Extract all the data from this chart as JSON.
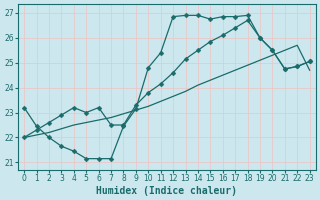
{
  "bg_color": "#cce8ee",
  "grid_color": "#e8c8c8",
  "line_color": "#1a6b6b",
  "xlabel": "Humidex (Indice chaleur)",
  "xlim": [
    -0.5,
    23.5
  ],
  "ylim": [
    20.7,
    27.35
  ],
  "yticks": [
    21,
    22,
    23,
    24,
    25,
    26,
    27
  ],
  "xticks": [
    0,
    1,
    2,
    3,
    4,
    5,
    6,
    7,
    8,
    9,
    10,
    11,
    12,
    13,
    14,
    15,
    16,
    17,
    18,
    19,
    20,
    21,
    22,
    23
  ],
  "line1_x": [
    0,
    1,
    2,
    3,
    4,
    5,
    6,
    7,
    8,
    9,
    10,
    11,
    12,
    13,
    14,
    15,
    16,
    17,
    18,
    19,
    20,
    21,
    22,
    23
  ],
  "line1_y": [
    23.2,
    22.45,
    22.0,
    21.65,
    21.45,
    21.15,
    21.15,
    21.15,
    22.45,
    23.15,
    24.8,
    25.4,
    26.85,
    26.9,
    26.9,
    26.75,
    26.85,
    26.85,
    26.9,
    26.0,
    25.5,
    24.75,
    24.85,
    25.05
  ],
  "line2_x": [
    0,
    1,
    2,
    3,
    4,
    5,
    6,
    7,
    8,
    9,
    10,
    11,
    12,
    13,
    14,
    15,
    16,
    17,
    18,
    19,
    20,
    21,
    22,
    23
  ],
  "line2_y": [
    22.0,
    22.3,
    22.6,
    22.9,
    23.2,
    23.0,
    23.2,
    22.5,
    22.5,
    23.3,
    23.8,
    24.15,
    24.6,
    25.15,
    25.5,
    25.85,
    26.1,
    26.4,
    26.7,
    26.0,
    25.5,
    24.75,
    24.85,
    25.05
  ],
  "line3_x": [
    0,
    1,
    2,
    3,
    4,
    5,
    6,
    7,
    8,
    9,
    10,
    11,
    12,
    13,
    14,
    15,
    16,
    17,
    18,
    19,
    20,
    21,
    22,
    23
  ],
  "line3_y": [
    22.0,
    22.1,
    22.2,
    22.35,
    22.5,
    22.6,
    22.7,
    22.8,
    22.95,
    23.1,
    23.25,
    23.45,
    23.65,
    23.85,
    24.1,
    24.3,
    24.5,
    24.7,
    24.9,
    25.1,
    25.3,
    25.5,
    25.7,
    24.7
  ],
  "marker": "D",
  "marker_size": 2.5
}
